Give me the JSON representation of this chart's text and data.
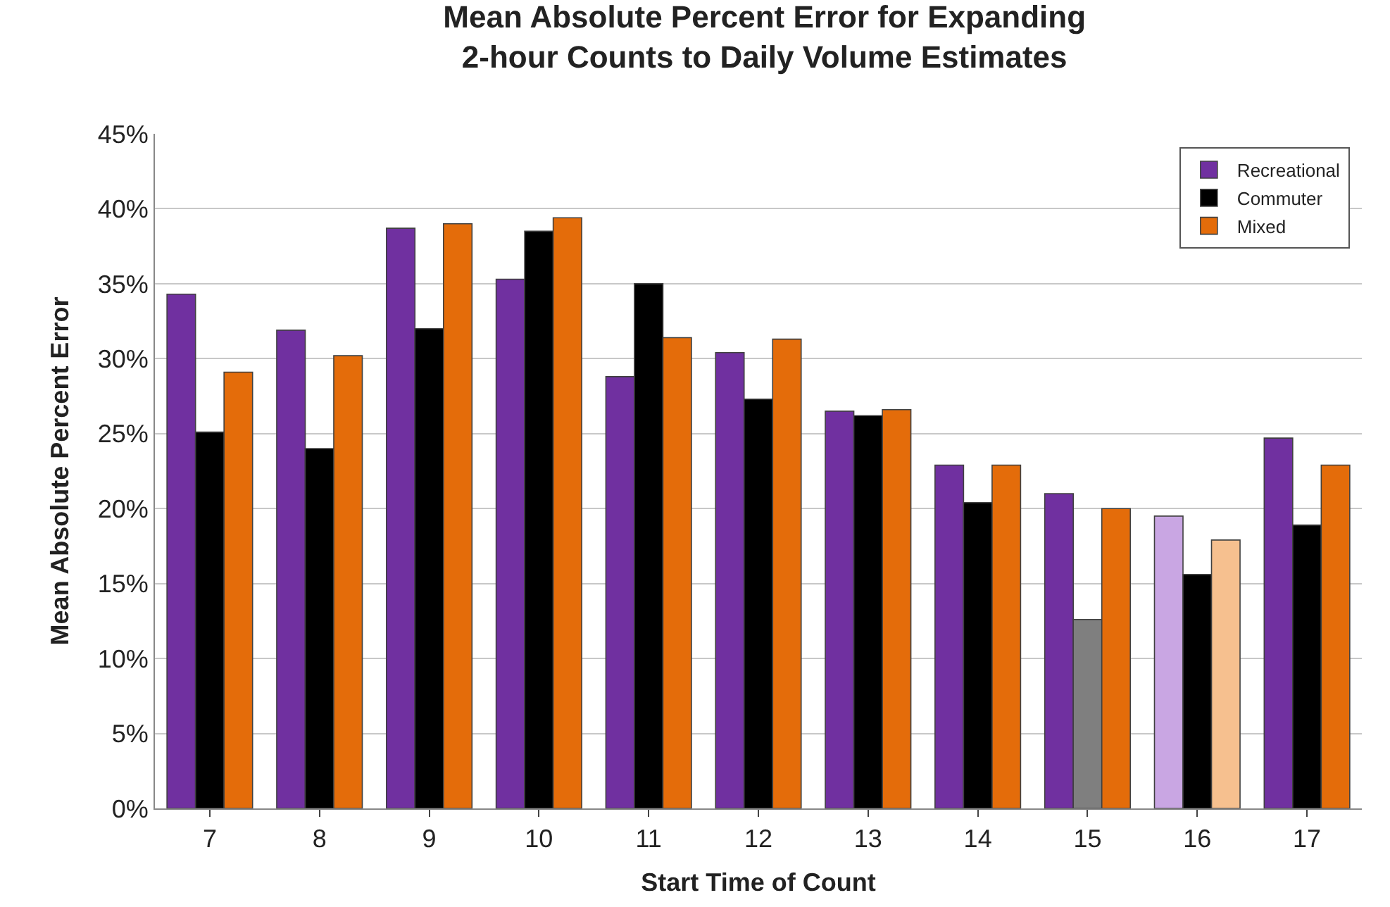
{
  "chart_data": {
    "type": "bar",
    "title": "Mean Absolute Percent Error for Expanding\n2-hour Counts to Daily Volume Estimates",
    "xlabel": "Start Time of Count",
    "ylabel": "Mean Absolute Percent Error",
    "categories": [
      "7",
      "8",
      "9",
      "10",
      "11",
      "12",
      "13",
      "14",
      "15",
      "16",
      "17"
    ],
    "series": [
      {
        "name": "Recreational",
        "color": "#7030a0",
        "colors": [
          null,
          null,
          null,
          null,
          null,
          null,
          null,
          null,
          null,
          "#c9a6e3",
          null
        ],
        "values": [
          34.3,
          31.9,
          38.7,
          35.3,
          28.8,
          30.4,
          26.5,
          22.9,
          21.0,
          19.5,
          24.7
        ]
      },
      {
        "name": "Commuter",
        "color": "#000000",
        "colors": [
          null,
          null,
          null,
          null,
          null,
          null,
          null,
          null,
          "#7f7f7f",
          null,
          null
        ],
        "values": [
          25.1,
          24.0,
          32.0,
          38.5,
          35.0,
          27.3,
          26.2,
          20.4,
          12.6,
          15.6,
          18.9
        ]
      },
      {
        "name": "Mixed",
        "color": "#e46c0a",
        "colors": [
          null,
          null,
          null,
          null,
          null,
          null,
          null,
          null,
          null,
          "#f6c08f",
          null
        ],
        "values": [
          29.1,
          30.2,
          39.0,
          39.4,
          31.4,
          31.3,
          26.6,
          22.9,
          20.0,
          17.9,
          22.9
        ]
      }
    ],
    "ylim": [
      0,
      45
    ],
    "yticks": [
      {
        "value": 0,
        "label": "0%"
      },
      {
        "value": 5,
        "label": "5%"
      },
      {
        "value": 10,
        "label": "10%"
      },
      {
        "value": 15,
        "label": "15%"
      },
      {
        "value": 20,
        "label": "20%"
      },
      {
        "value": 25,
        "label": "25%"
      },
      {
        "value": 30,
        "label": "30%"
      },
      {
        "value": 35,
        "label": "35%"
      },
      {
        "value": 40,
        "label": "40%"
      },
      {
        "value": 45,
        "label": "45%"
      }
    ],
    "grid": "y",
    "legend": "top right"
  }
}
